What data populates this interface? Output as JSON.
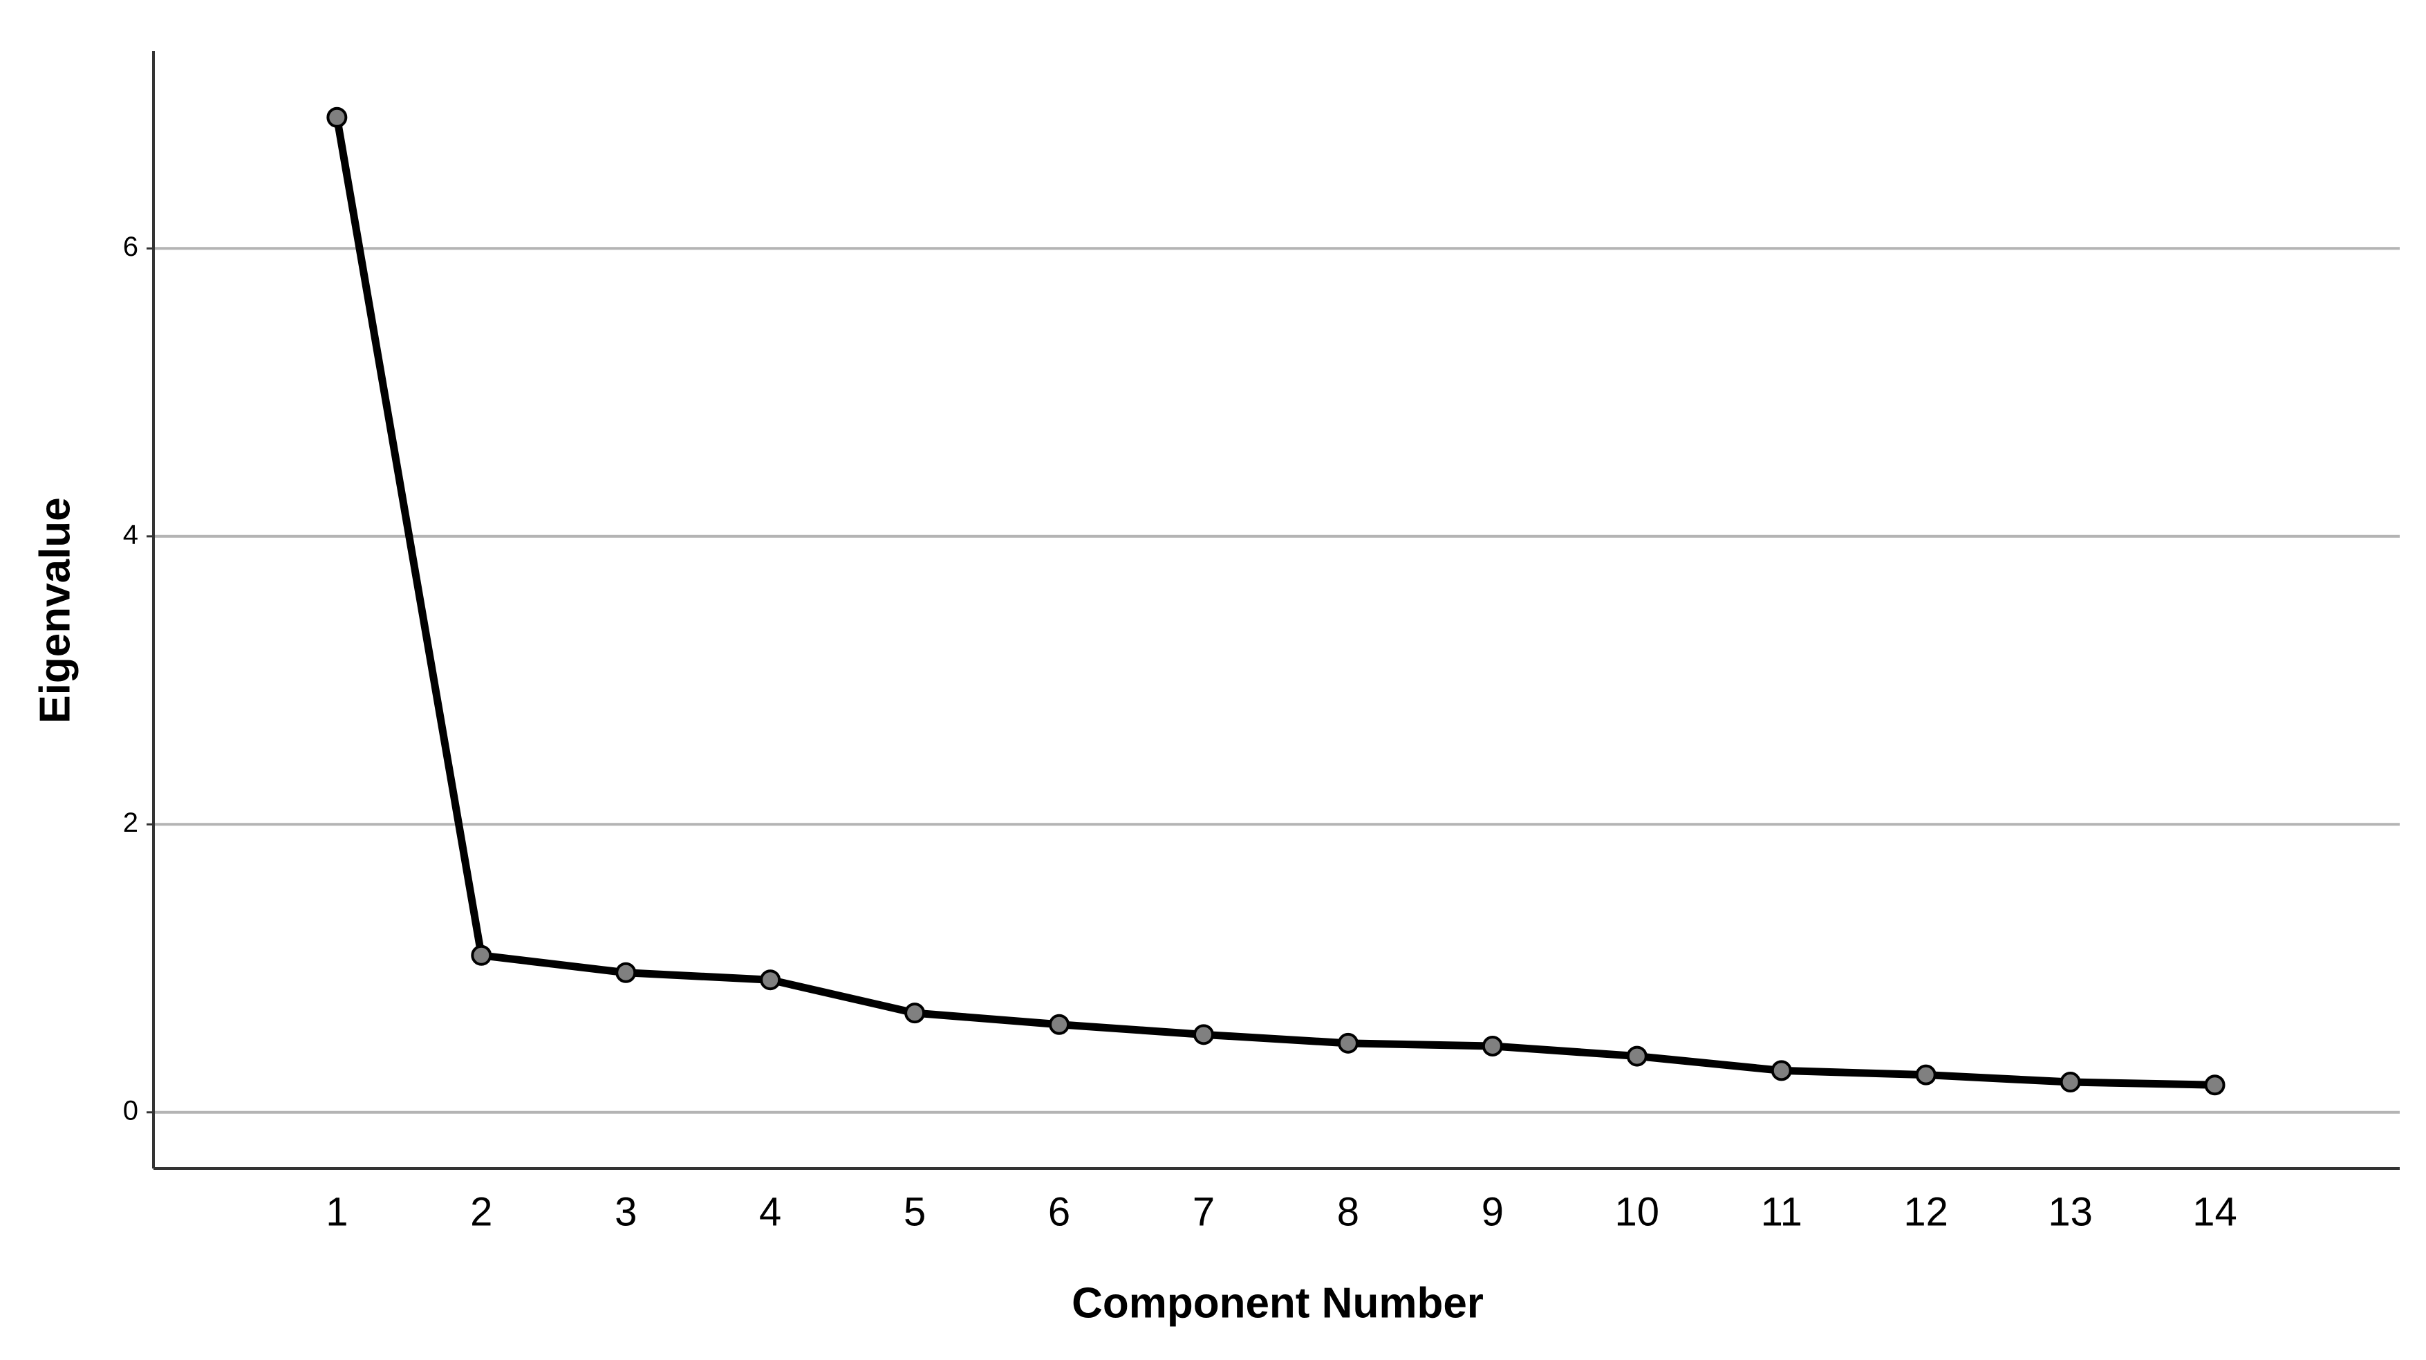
{
  "chart_data": {
    "type": "line",
    "x_label": "Component Number",
    "y_label": "Eigenvalue",
    "x": [
      1,
      2,
      3,
      4,
      5,
      6,
      7,
      8,
      9,
      10,
      11,
      12,
      13,
      14
    ],
    "series": [
      {
        "color": "#000000",
        "marker_color": "#808080",
        "values": [
          6.91,
          1.09,
          0.97,
          0.92,
          0.69,
          0.61,
          0.54,
          0.48,
          0.46,
          0.39,
          0.29,
          0.26,
          0.21,
          0.19
        ]
      }
    ],
    "xlim": [
      -0.27,
      15.28
    ],
    "xticks": [
      1,
      2,
      3,
      4,
      5,
      6,
      7,
      8,
      9,
      10,
      11,
      12,
      13,
      14
    ],
    "ylim": [
      -0.39,
      7.37
    ],
    "yticks": [
      0,
      2,
      4,
      6
    ],
    "grid": true
  }
}
